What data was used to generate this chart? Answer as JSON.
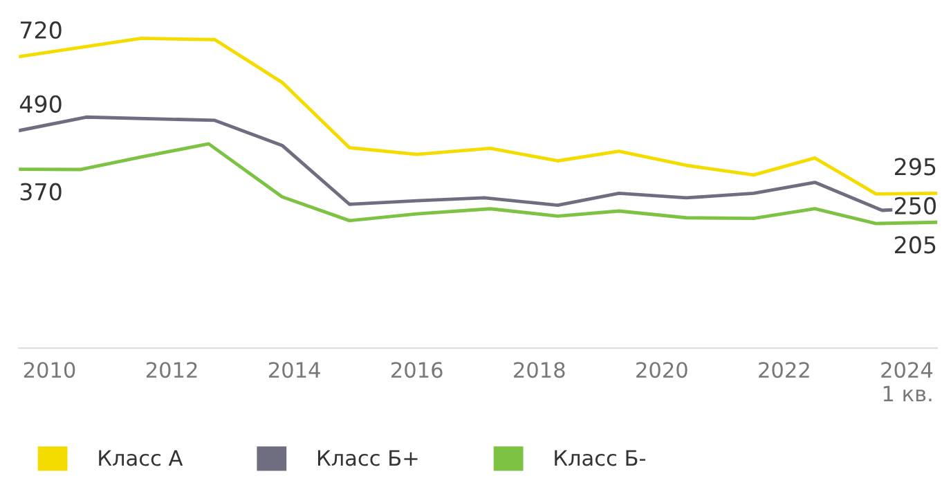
{
  "chart_data": {
    "type": "line",
    "xlim": [
      2009.5,
      2024.5
    ],
    "xticks": [
      2010,
      2012,
      2014,
      2016,
      2018,
      2020,
      2022,
      {
        "value": 2024,
        "label": "2024\n1 кв."
      }
    ],
    "tick_labels": "x",
    "grid": false,
    "legend": "bottom left",
    "marker": "none",
    "line_style": "solid",
    "series": [
      {
        "name": "Класс А",
        "color": "#f5dc00",
        "x": [
          2009.5,
          2011.5,
          2012.7,
          2013.8,
          2014.9,
          2016,
          2017.2,
          2018.3,
          2019.3,
          2020.4,
          2021.5,
          2022.5,
          2023.5,
          2024.5
        ],
        "values": [
          720,
          777,
          773,
          640,
          437,
          416,
          435,
          396,
          426,
          382,
          352,
          405,
          293,
          295
        ],
        "value_labels": [
          "720",
          null,
          null,
          null,
          null,
          null,
          null,
          null,
          null,
          null,
          null,
          null,
          null,
          "295"
        ]
      },
      {
        "name": "Класс Б+",
        "color": "#6e6e80",
        "x": [
          2009.5,
          2010.6,
          2012.7,
          2013.8,
          2014.9,
          2016,
          2017.1,
          2018.3,
          2019.3,
          2020.4,
          2021.5,
          2022.5,
          2023.6,
          2024.5
        ],
        "values": [
          490,
          532,
          522,
          444,
          261,
          272,
          281,
          258,
          295,
          281,
          295,
          329,
          242,
          250
        ],
        "value_labels": [
          "490",
          null,
          null,
          null,
          null,
          null,
          null,
          null,
          null,
          null,
          null,
          null,
          null,
          "250"
        ]
      },
      {
        "name": "Класс Б-",
        "color": "#7dc242",
        "x": [
          2009.5,
          2010.5,
          2011.5,
          2012.6,
          2013.8,
          2014.9,
          2016,
          2017.2,
          2018.3,
          2019.3,
          2020.4,
          2021.5,
          2022.5,
          2023.5,
          2024.5
        ],
        "values": [
          370,
          369,
          408,
          449,
          284,
          210,
          231,
          247,
          224,
          240,
          219,
          217,
          247,
          201,
          205
        ],
        "value_labels": [
          "370",
          null,
          null,
          null,
          null,
          null,
          null,
          null,
          null,
          null,
          null,
          null,
          null,
          null,
          "205"
        ]
      }
    ]
  }
}
